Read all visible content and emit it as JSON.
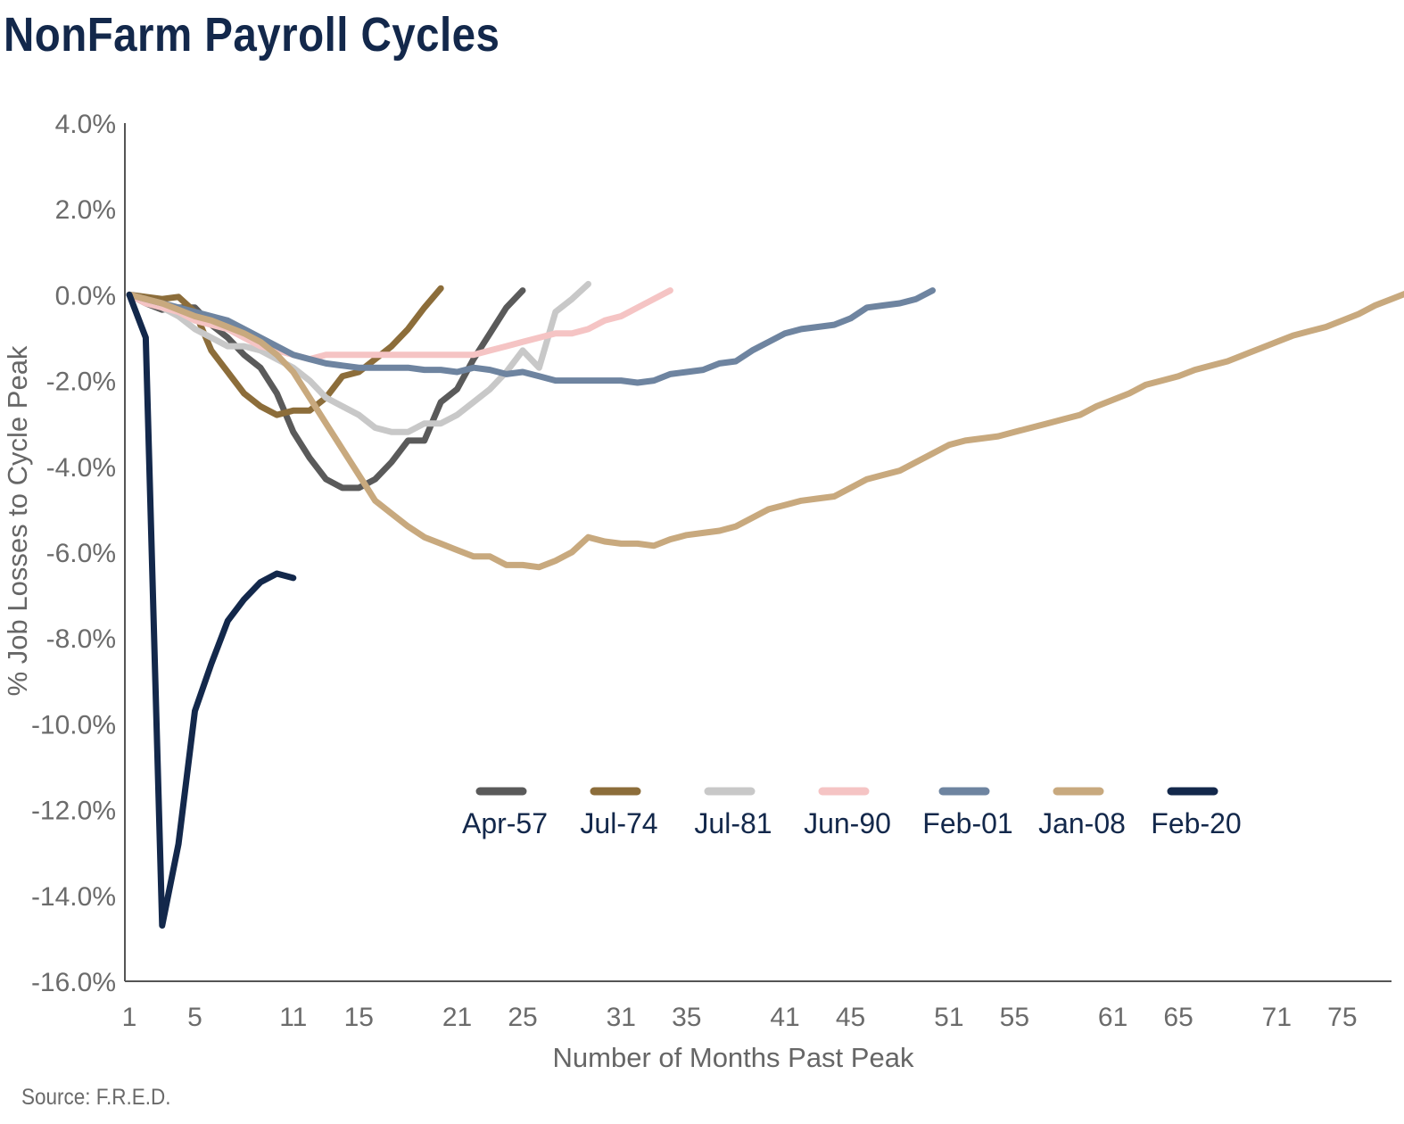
{
  "title": "NonFarm Payroll Cycles",
  "source": "Source: F.R.E.D.",
  "colors": {
    "Apr-57": "#5a5a5a",
    "Jul-74": "#8c6d3a",
    "Jul-81": "#c8c8c8",
    "Jun-90": "#f5c4c4",
    "Feb-01": "#6e84a0",
    "Jan-08": "#c8a97e",
    "Feb-20": "#13284b"
  },
  "chart_data": {
    "type": "line",
    "title": "NonFarm Payroll Cycles",
    "xlabel": "Number of Months Past Peak",
    "ylabel": "% Job Losses to Cycle Peak",
    "xlim": [
      1,
      78
    ],
    "ylim": [
      -16,
      4
    ],
    "x_ticks": [
      "1",
      "5",
      "11",
      "15",
      "21",
      "25",
      "31",
      "35",
      "41",
      "45",
      "51",
      "55",
      "61",
      "65",
      "71",
      "75"
    ],
    "y_ticks": [
      "4.0%",
      "2.0%",
      "0.0%",
      "-2.0%",
      "-4.0%",
      "-6.0%",
      "-8.0%",
      "-10.0%",
      "-12.0%",
      "-14.0%",
      "-16.0%"
    ],
    "y_tick_values": [
      4,
      2,
      0,
      -2,
      -4,
      -6,
      -8,
      -10,
      -12,
      -14,
      -16
    ],
    "legend_position": "center-right",
    "grid": false,
    "series": [
      {
        "name": "Apr-57",
        "x_start": 1,
        "values": [
          0.0,
          -0.2,
          -0.35,
          -0.3,
          -0.3,
          -0.7,
          -1.0,
          -1.4,
          -1.7,
          -2.3,
          -3.2,
          -3.8,
          -4.3,
          -4.5,
          -4.5,
          -4.3,
          -3.9,
          -3.4,
          -3.4,
          -2.5,
          -2.2,
          -1.5,
          -0.9,
          -0.3,
          0.1
        ]
      },
      {
        "name": "Jul-74",
        "x_start": 1,
        "values": [
          0.0,
          -0.05,
          -0.1,
          -0.05,
          -0.4,
          -1.3,
          -1.8,
          -2.3,
          -2.6,
          -2.8,
          -2.7,
          -2.7,
          -2.4,
          -1.9,
          -1.8,
          -1.5,
          -1.2,
          -0.8,
          -0.3,
          0.15
        ]
      },
      {
        "name": "Jul-81",
        "x_start": 1,
        "values": [
          0.0,
          -0.1,
          -0.3,
          -0.5,
          -0.8,
          -1.0,
          -1.2,
          -1.2,
          -1.3,
          -1.5,
          -1.7,
          -2.0,
          -2.4,
          -2.6,
          -2.8,
          -3.1,
          -3.2,
          -3.2,
          -3.0,
          -3.0,
          -2.8,
          -2.5,
          -2.2,
          -1.8,
          -1.3,
          -1.7,
          -0.4,
          -0.1,
          0.25
        ]
      },
      {
        "name": "Jun-90",
        "x_start": 1,
        "values": [
          0.0,
          -0.2,
          -0.3,
          -0.4,
          -0.6,
          -0.7,
          -0.8,
          -1.0,
          -1.2,
          -1.3,
          -1.4,
          -1.5,
          -1.4,
          -1.4,
          -1.4,
          -1.4,
          -1.4,
          -1.4,
          -1.4,
          -1.4,
          -1.4,
          -1.4,
          -1.3,
          -1.2,
          -1.1,
          -1.0,
          -0.9,
          -0.9,
          -0.8,
          -0.6,
          -0.5,
          -0.3,
          -0.1,
          0.1
        ]
      },
      {
        "name": "Feb-01",
        "x_start": 1,
        "values": [
          0.0,
          -0.1,
          -0.2,
          -0.3,
          -0.4,
          -0.5,
          -0.6,
          -0.8,
          -1.0,
          -1.2,
          -1.4,
          -1.5,
          -1.6,
          -1.65,
          -1.7,
          -1.7,
          -1.7,
          -1.7,
          -1.75,
          -1.75,
          -1.8,
          -1.7,
          -1.75,
          -1.85,
          -1.8,
          -1.9,
          -2.0,
          -2.0,
          -2.0,
          -2.0,
          -2.0,
          -2.05,
          -2.0,
          -1.85,
          -1.8,
          -1.75,
          -1.6,
          -1.55,
          -1.3,
          -1.1,
          -0.9,
          -0.8,
          -0.75,
          -0.7,
          -0.55,
          -0.3,
          -0.25,
          -0.2,
          -0.1,
          0.1
        ]
      },
      {
        "name": "Jan-08",
        "x_start": 1,
        "values": [
          0.0,
          -0.1,
          -0.2,
          -0.35,
          -0.5,
          -0.6,
          -0.75,
          -0.9,
          -1.1,
          -1.4,
          -1.8,
          -2.4,
          -3.0,
          -3.6,
          -4.2,
          -4.8,
          -5.1,
          -5.4,
          -5.65,
          -5.8,
          -5.95,
          -6.1,
          -6.1,
          -6.3,
          -6.3,
          -6.35,
          -6.2,
          -6.0,
          -5.65,
          -5.75,
          -5.8,
          -5.8,
          -5.85,
          -5.7,
          -5.6,
          -5.55,
          -5.5,
          -5.4,
          -5.2,
          -5.0,
          -4.9,
          -4.8,
          -4.75,
          -4.7,
          -4.5,
          -4.3,
          -4.2,
          -4.1,
          -3.9,
          -3.7,
          -3.5,
          -3.4,
          -3.35,
          -3.3,
          -3.2,
          -3.1,
          -3.0,
          -2.9,
          -2.8,
          -2.6,
          -2.45,
          -2.3,
          -2.1,
          -2.0,
          -1.9,
          -1.75,
          -1.65,
          -1.55,
          -1.4,
          -1.25,
          -1.1,
          -0.95,
          -0.85,
          -0.75,
          -0.6,
          -0.45,
          -0.25,
          -0.1,
          0.05
        ]
      },
      {
        "name": "Feb-20",
        "x_start": 1,
        "values": [
          0.0,
          -1.0,
          -14.7,
          -12.8,
          -9.7,
          -8.6,
          -7.6,
          -7.1,
          -6.7,
          -6.5,
          -6.6
        ]
      }
    ]
  }
}
